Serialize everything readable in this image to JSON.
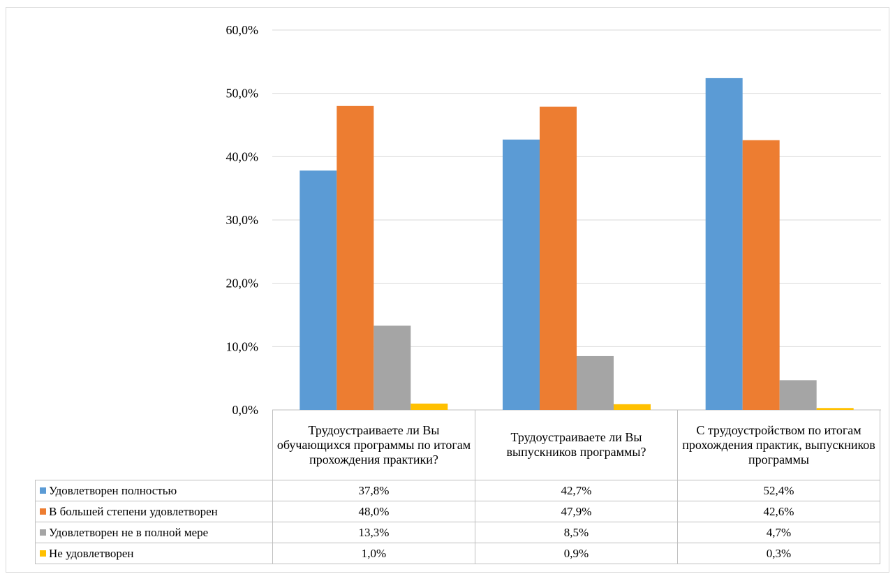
{
  "chart_data": {
    "type": "bar",
    "categories": [
      "Трудоустраиваете ли Вы обучающихся программы по итогам прохождения практики?",
      "Трудоустраиваете ли Вы выпускников программы?",
      "С трудоустройством по итогам прохождения практик,  выпускников программы"
    ],
    "series": [
      {
        "name": "Удовлетворен полностью",
        "color": "#5b9bd5",
        "values": [
          37.8,
          42.7,
          52.4
        ],
        "labels": [
          "37,8%",
          "42,7%",
          "52,4%"
        ]
      },
      {
        "name": "В большей степени удовлетворен",
        "color": "#ed7d31",
        "values": [
          48.0,
          47.9,
          42.6
        ],
        "labels": [
          "48,0%",
          "47,9%",
          "42,6%"
        ]
      },
      {
        "name": "Удовлетворен не в полной мере",
        "color": "#a5a5a5",
        "values": [
          13.3,
          8.5,
          4.7
        ],
        "labels": [
          "13,3%",
          "8,5%",
          "4,7%"
        ]
      },
      {
        "name": "Не удовлетворен",
        "color": "#ffc000",
        "values": [
          1.0,
          0.9,
          0.3
        ],
        "labels": [
          "1,0%",
          "0,9%",
          "0,3%"
        ]
      }
    ],
    "y_ticks": [
      "0,0%",
      "10,0%",
      "20,0%",
      "30,0%",
      "40,0%",
      "50,0%",
      "60,0%"
    ],
    "ylim": [
      0,
      60
    ],
    "grid": true,
    "legend": "data table below the chart",
    "title": "",
    "xlabel": "",
    "ylabel": ""
  }
}
